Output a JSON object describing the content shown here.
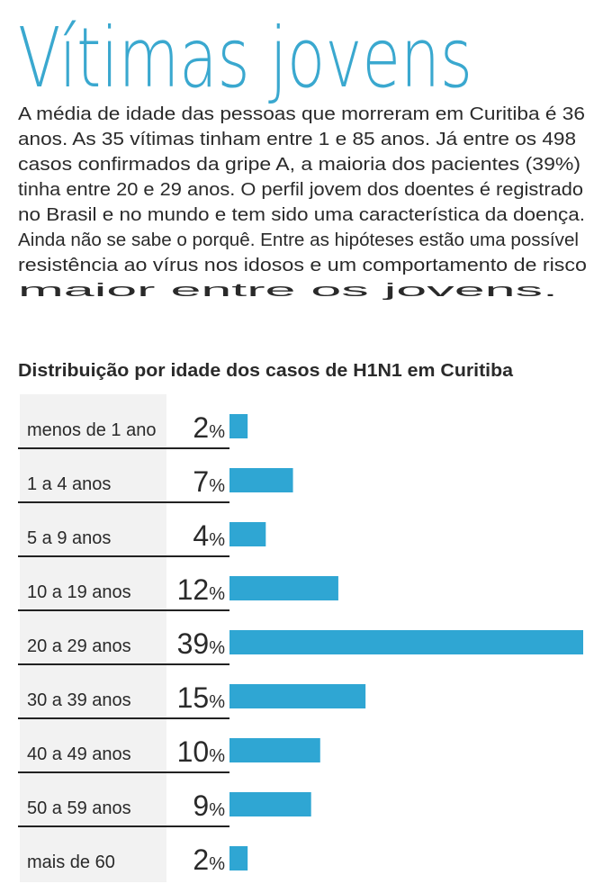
{
  "title": "Vítimas jovens",
  "body_lines": [
    "A média de idade das pessoas que morreram em Curitiba é 36",
    "anos. As 35 vítimas tinham entre 1 e 85 anos. Já entre os 498",
    "casos confirmados da gripe A, a maioria dos pacientes (39%)",
    "tinha entre 20 e 29 anos. O perfil jovem dos doentes é registrado",
    "no Brasil e no mundo e tem sido uma característica da doença.",
    "Ainda não se sabe o porquê. Entre as hipóteses estão uma possível",
    "resistência ao vírus nos idosos e um comportamento de risco",
    "maior entre os jovens."
  ],
  "colors": {
    "accent": "#3aa8cf",
    "bar": "#2fa6d3",
    "panel": "#f2f2f2",
    "text": "#2a2a2a"
  },
  "chart_data": {
    "type": "bar",
    "orientation": "horizontal",
    "title": "Distribuição por idade dos casos de H1N1 em Curitiba",
    "categories": [
      "menos de 1 ano",
      "1 a 4 anos",
      "5 a 9 anos",
      "10 a 19 anos",
      "20 a 29 anos",
      "30 a 39 anos",
      "40 a 49 anos",
      "50 a 59 anos",
      "mais de 60"
    ],
    "values": [
      2,
      7,
      4,
      12,
      39,
      15,
      10,
      9,
      2
    ],
    "unit": "%",
    "grid": false
  }
}
